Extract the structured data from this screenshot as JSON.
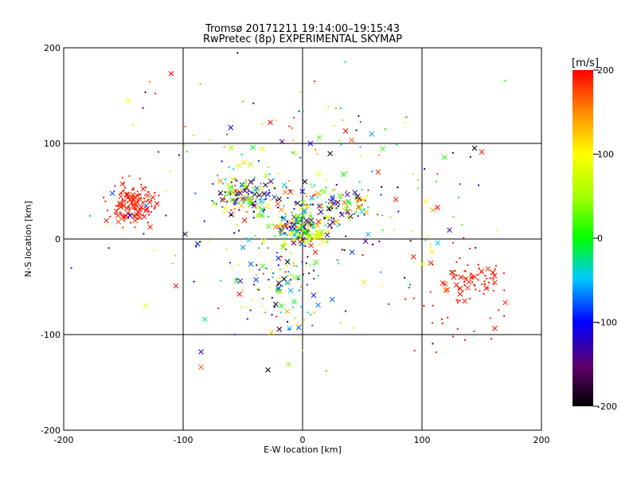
{
  "chart_data": {
    "type": "scatter",
    "title": "Tromsø 20171211 19:14:00–19:15:43",
    "subtitle": "RwPretec (8p) EXPERIMENTAL SKYMAP",
    "xlabel": "E-W location [km]",
    "ylabel": "N-S location [km]",
    "xlim": [
      -200,
      200
    ],
    "ylim": [
      -200,
      200
    ],
    "xticks": [
      "-200",
      "-100",
      "0",
      "100",
      "200"
    ],
    "yticks": [
      "-200",
      "-100",
      "0",
      "100",
      "200"
    ],
    "grid": true,
    "colorbar": {
      "label": "[m/s]",
      "range": [
        -200,
        200
      ],
      "ticks": [
        "-200",
        "-100",
        "0",
        "100",
        "200"
      ],
      "colormap": "rainbow: black-purple-blue-cyan-green-yellow-orange-red"
    },
    "marker_types": [
      "cross",
      "dot"
    ],
    "clusters": [
      {
        "cx": -143,
        "cy": 38,
        "sx": 9,
        "sy": 10,
        "n": 150,
        "vmin": 180,
        "vmax": 200,
        "cross_ratio": 0.35
      },
      {
        "cx": 143,
        "cy": -42,
        "sx": 13,
        "sy": 8,
        "n": 55,
        "vmin": 180,
        "vmax": 200,
        "cross_ratio": 0.4
      },
      {
        "cx": -48,
        "cy": 45,
        "sx": 11,
        "sy": 10,
        "n": 150,
        "vmin": -200,
        "vmax": 200,
        "cross_ratio": 0.35
      },
      {
        "cx": -5,
        "cy": 12,
        "sx": 9,
        "sy": 9,
        "n": 170,
        "vmin": -200,
        "vmax": 200,
        "cross_ratio": 0.35
      },
      {
        "cx": 25,
        "cy": 35,
        "sx": 22,
        "sy": 12,
        "n": 120,
        "vmin": -200,
        "vmax": 200,
        "cross_ratio": 0.35
      },
      {
        "cx": 10,
        "cy": 2,
        "sx": 6,
        "sy": 4,
        "n": 35,
        "vmin": 40,
        "vmax": 110,
        "cross_ratio": 0.3
      },
      {
        "cx": -15,
        "cy": -50,
        "sx": 18,
        "sy": 25,
        "n": 90,
        "vmin": -200,
        "vmax": 200,
        "cross_ratio": 0.3
      },
      {
        "cx": 0,
        "cy": 30,
        "sx": 75,
        "sy": 65,
        "n": 260,
        "vmin": -200,
        "vmax": 200,
        "cross_ratio": 0.2
      },
      {
        "cx": 130,
        "cy": -55,
        "sx": 30,
        "sy": 25,
        "n": 45,
        "vmin": 185,
        "vmax": 200,
        "cross_ratio": 0.05
      }
    ],
    "points": [
      {
        "x": -110,
        "y": 173,
        "v": 200,
        "m": "cross"
      },
      {
        "x": -146,
        "y": 145,
        "v": 100,
        "m": "cross"
      },
      {
        "x": -27,
        "y": 122,
        "v": 200,
        "m": "cross"
      },
      {
        "x": 36,
        "y": 113,
        "v": 200,
        "m": "cross"
      },
      {
        "x": 144,
        "y": 95,
        "v": -200,
        "m": "cross"
      },
      {
        "x": 150,
        "y": 91,
        "v": 200,
        "m": "cross"
      },
      {
        "x": 14,
        "y": 106,
        "v": 20,
        "m": "cross"
      },
      {
        "x": -85,
        "y": -134,
        "v": 170,
        "m": "cross"
      },
      {
        "x": -85,
        "y": -118,
        "v": -110,
        "m": "cross"
      },
      {
        "x": -29,
        "y": -137,
        "v": -200,
        "m": "cross"
      },
      {
        "x": -82,
        "y": -84,
        "v": -20,
        "m": "cross"
      },
      {
        "x": -106,
        "y": -49,
        "v": 200,
        "m": "cross"
      },
      {
        "x": 113,
        "y": 33,
        "v": 200,
        "m": "cross"
      },
      {
        "x": 108,
        "y": -13,
        "v": 110,
        "m": "cross"
      }
    ]
  }
}
